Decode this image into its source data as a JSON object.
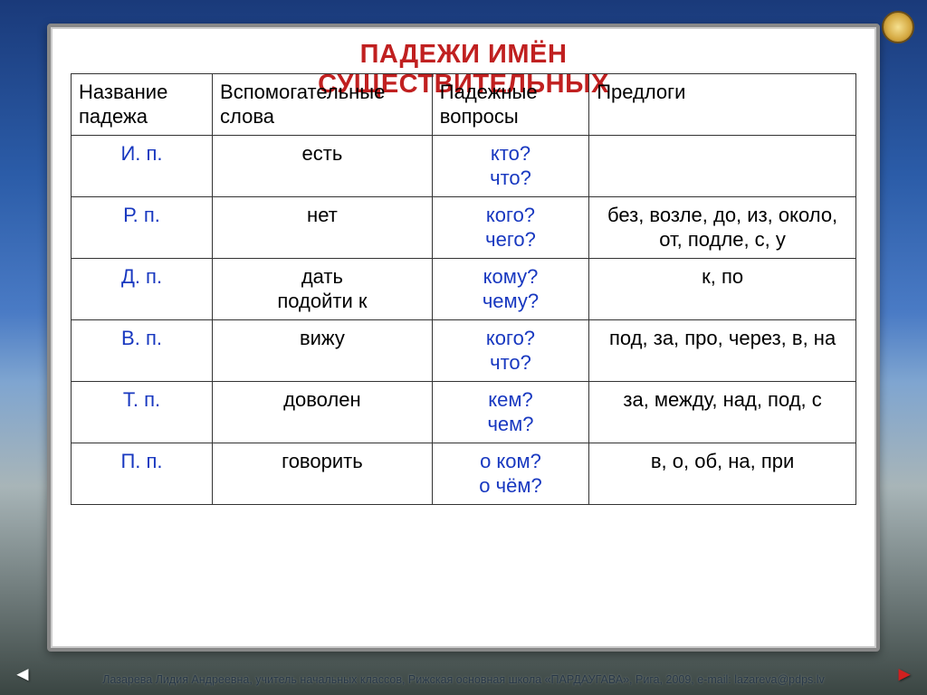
{
  "title_line1": "ПАДЕЖИ ИМЁН",
  "title_line2": "СУЩЕСТВИТЕЛЬНЫХ",
  "headers": {
    "case": "Название падежа",
    "aux": "Вспомогательные слова",
    "questions": "Падежные вопросы",
    "preps": "Предлоги"
  },
  "rows": [
    {
      "case": "И.  п.",
      "aux": "есть",
      "q": "кто?\nчто?",
      "prep": ""
    },
    {
      "case": "Р.  п.",
      "aux": "нет",
      "q": "кого?\nчего?",
      "prep": "без, возле, до, из, около, от, подле, с, у"
    },
    {
      "case": "Д.  п.",
      "aux": "дать\nподойти к",
      "q": "кому?\nчему?",
      "prep": "к, по"
    },
    {
      "case": "В.  п.",
      "aux": "вижу",
      "q": "кого?\nчто?",
      "prep": "под, за, про, через, в, на"
    },
    {
      "case": "Т.  п.",
      "aux": "доволен",
      "q": "кем?\nчем?",
      "prep": "за, между, над, под, с"
    },
    {
      "case": "П.  п.",
      "aux": "говорить",
      "q": "о ком?\nо чём?",
      "prep": "в, о, об, на, при"
    }
  ],
  "footer": "Лазарева Лидия Андреевна, учитель начальных классов, Рижская основная школа «ПАРДАУГАВА», Рига, 2009, e-mail: lazareva@pdps.lv",
  "nav": {
    "left": "◄",
    "right": "►"
  },
  "styling": {
    "title_color": "#c02020",
    "case_color": "#1838c0",
    "question_color": "#1838c0",
    "text_color": "#000000",
    "border_color": "#333333",
    "panel_bg": "#ffffff",
    "panel_border": "#888888",
    "body_font": "Arial",
    "title_fontsize_pt": 22,
    "cell_fontsize_pt": 17,
    "col_widths_pct": [
      18,
      28,
      20,
      34
    ]
  }
}
